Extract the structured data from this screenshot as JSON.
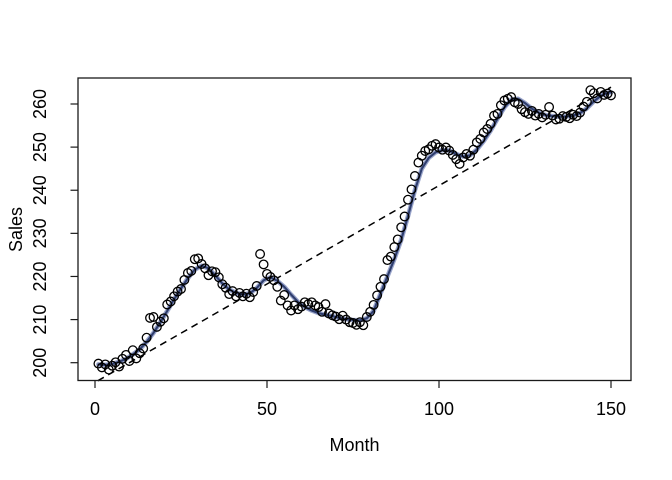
{
  "figure": {
    "xlabel": "Month",
    "ylabel": "Sales"
  },
  "chart_data": {
    "type": "scatter",
    "title": "",
    "xlabel": "Month",
    "ylabel": "Sales",
    "xlim": [
      -5,
      156
    ],
    "ylim": [
      195.7,
      266
    ],
    "grid": false,
    "legend": "none",
    "x_tick_values": [
      0,
      50,
      100,
      150
    ],
    "x_tick_labels": [
      "0",
      "50",
      "100",
      "150"
    ],
    "y_tick_values": [
      200,
      210,
      220,
      230,
      240,
      250,
      260
    ],
    "y_tick_labels": [
      "200",
      "210",
      "220",
      "230",
      "240",
      "250",
      "260"
    ],
    "colors": {
      "point_stroke": "#000000",
      "smooth_outer": "#9aa5cb",
      "smooth_inner": "#2f3e6e",
      "trend_line": "#000000",
      "axis": "#1a1a1a"
    },
    "series": [
      {
        "name": "monthly-sales-points",
        "type": "scatter",
        "marker": "open-circle",
        "x": [
          1,
          2,
          3,
          4,
          5,
          6,
          7,
          8,
          9,
          10,
          11,
          12,
          13,
          14,
          15,
          16,
          17,
          18,
          19,
          20,
          21,
          22,
          23,
          24,
          25,
          26,
          27,
          28,
          29,
          30,
          31,
          32,
          33,
          34,
          35,
          36,
          37,
          38,
          39,
          40,
          41,
          42,
          43,
          44,
          45,
          46,
          47,
          48,
          49,
          50,
          51,
          52,
          53,
          54,
          55,
          56,
          57,
          58,
          59,
          60,
          61,
          62,
          63,
          64,
          65,
          66,
          67,
          68,
          69,
          70,
          71,
          72,
          73,
          74,
          75,
          76,
          77,
          78,
          79,
          80,
          81,
          82,
          83,
          84,
          85,
          86,
          87,
          88,
          89,
          90,
          91,
          92,
          93,
          94,
          95,
          96,
          97,
          98,
          99,
          100,
          101,
          102,
          103,
          104,
          105,
          106,
          107,
          108,
          109,
          110,
          111,
          112,
          113,
          114,
          115,
          116,
          117,
          118,
          119,
          120,
          121,
          122,
          123,
          124,
          125,
          126,
          127,
          128,
          129,
          130,
          131,
          132,
          133,
          134,
          135,
          136,
          137,
          138,
          139,
          140,
          141,
          142,
          143,
          144,
          145,
          146,
          147,
          148,
          149,
          150
        ],
        "y": [
          199.8,
          198.9,
          199.6,
          198.4,
          199.3,
          200.1,
          199.1,
          200.9,
          201.8,
          200.4,
          202.9,
          201.0,
          202.2,
          203.3,
          205.8,
          210.4,
          210.6,
          208.3,
          209.5,
          210.3,
          213.5,
          214.2,
          215.4,
          216.5,
          217.1,
          219.2,
          220.8,
          221.3,
          224.0,
          224.2,
          222.9,
          221.9,
          220.3,
          221.2,
          221.0,
          219.8,
          218.2,
          217.4,
          215.9,
          216.6,
          215.4,
          216.2,
          215.4,
          216.0,
          215.2,
          216.4,
          217.8,
          225.2,
          222.8,
          220.6,
          219.9,
          219.1,
          217.6,
          214.4,
          215.7,
          213.3,
          212.1,
          213.3,
          212.4,
          213.0,
          214.0,
          213.6,
          214.0,
          213.3,
          212.9,
          211.8,
          213.6,
          211.4,
          211.0,
          210.7,
          210.1,
          210.9,
          210.0,
          209.4,
          209.2,
          208.8,
          209.4,
          208.7,
          210.6,
          211.8,
          213.4,
          215.6,
          217.6,
          219.4,
          223.8,
          224.6,
          226.8,
          228.6,
          231.4,
          233.9,
          237.8,
          240.2,
          243.3,
          246.4,
          248.0,
          249.1,
          249.5,
          250.3,
          250.7,
          249.9,
          249.4,
          249.9,
          249.2,
          248.2,
          247.2,
          246.1,
          247.6,
          248.4,
          248.0,
          249.4,
          251.1,
          251.9,
          253.4,
          254.2,
          255.4,
          257.3,
          257.7,
          259.7,
          260.8,
          261.2,
          261.6,
          260.4,
          260.0,
          258.8,
          258.1,
          257.7,
          258.4,
          257.3,
          257.7,
          256.9,
          257.5,
          259.3,
          257.3,
          256.4,
          256.6,
          257.2,
          257.0,
          256.7,
          257.5,
          257.2,
          258.0,
          259.4,
          260.5,
          263.2,
          262.5,
          261.3,
          262.8,
          262.1,
          262.4,
          262.0
        ]
      },
      {
        "name": "smooth-curve",
        "type": "line",
        "x": [
          1,
          3,
          5,
          7,
          9,
          11,
          13,
          15,
          17,
          19,
          21,
          23,
          25,
          27,
          29,
          31,
          33,
          35,
          37,
          39,
          41,
          43,
          45,
          47,
          49,
          51,
          53,
          55,
          57,
          59,
          61,
          63,
          65,
          67,
          69,
          71,
          73,
          75,
          77,
          79,
          81,
          83,
          85,
          87,
          89,
          91,
          93,
          95,
          97,
          99,
          101,
          103,
          105,
          107,
          109,
          111,
          113,
          115,
          117,
          119,
          121,
          123,
          125,
          127,
          129,
          131,
          133,
          135,
          137,
          139,
          141,
          143,
          145,
          147,
          149,
          150
        ],
        "y": [
          199.6,
          199.5,
          199.7,
          200.2,
          200.9,
          201.9,
          203.1,
          204.8,
          206.9,
          209.4,
          212.0,
          214.7,
          217.2,
          219.6,
          221.6,
          222.5,
          221.9,
          220.2,
          218.4,
          217.0,
          216.2,
          215.8,
          216.1,
          217.3,
          219.1,
          219.8,
          219.0,
          217.6,
          215.8,
          214.1,
          212.9,
          212.1,
          211.5,
          211.1,
          210.8,
          210.4,
          210.1,
          209.9,
          209.8,
          210.3,
          212.0,
          216.0,
          220.0,
          224.0,
          228.5,
          234.0,
          240.0,
          245.0,
          247.5,
          248.8,
          249.3,
          249.2,
          248.4,
          247.8,
          248.1,
          249.4,
          251.4,
          253.8,
          256.6,
          259.2,
          261.0,
          261.2,
          260.2,
          258.9,
          258.0,
          257.4,
          257.2,
          257.1,
          257.1,
          257.3,
          257.9,
          259.0,
          260.6,
          261.9,
          262.6,
          262.7
        ]
      },
      {
        "name": "linear-trend",
        "type": "dashed-line",
        "x": [
          0.8,
          150
        ],
        "y": [
          195.8,
          263.9
        ]
      }
    ]
  }
}
